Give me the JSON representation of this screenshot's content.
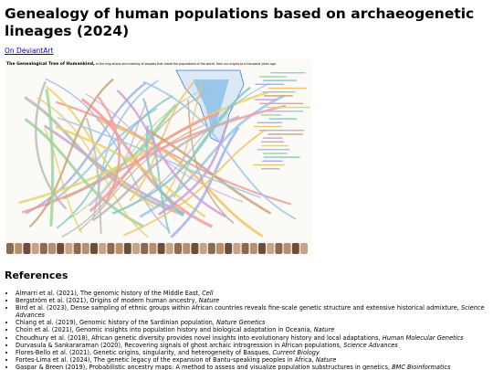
{
  "header": {
    "title": "Genealogy of human populations based on archaeogenetic lineages (2024)",
    "link": "On DeviantArt"
  },
  "image": {
    "title": "The Genealogical Tree of Humankind,",
    "subtitle": "or the migrations and meeting of peoples that made the populations of the world, from our origins to a thousand years ago"
  },
  "references": {
    "heading": "References",
    "items": [
      {
        "text": "Almarri et al. (2021), The genomic history of the Middle East, ",
        "journal": "Cell"
      },
      {
        "text": "Bergström et al. (2021), Origins of modern human ancestry, ",
        "journal": "Nature"
      },
      {
        "text": "Bird et al. (2023), Dense sampling of ethnic groups within African countries reveals fine-scale genetic structure and extensive historical admixture, ",
        "journal": "Science Advances"
      },
      {
        "text": "Chiang et al. (2019), Genomic history of the Sardinian population, ",
        "journal": "Nature Genetics"
      },
      {
        "text": "Choin et al. (2021), Genomic insights into population history and biological adaptation in Oceania, ",
        "journal": "Nature"
      },
      {
        "text": "Choudhury et al. (2018), African genetic diversity provides novel insights into evolutionary history and local adaptations, ",
        "journal": "Human Molecular Genetics"
      },
      {
        "text": "Durvasula & Sankararaman (2020), Recovering signals of ghost archaic introgression in African populations, ",
        "journal": "Science Advances"
      },
      {
        "text": "Flores-Bello et al. (2021), Genetic origins, singularity, and heterogeneity of Basques, ",
        "journal": "Current Biology"
      },
      {
        "text": "Fortes-Lima et al. (2024), The genetic legacy of the expansion of Bantu-speaking peoples in Africa, ",
        "journal": "Nature"
      },
      {
        "text": "Gaspar & Breen (2019), Probabilistic ancestry maps: A method to assess and visualize population substructures in genetics, ",
        "journal": "BMC Bioinformatics"
      }
    ]
  }
}
